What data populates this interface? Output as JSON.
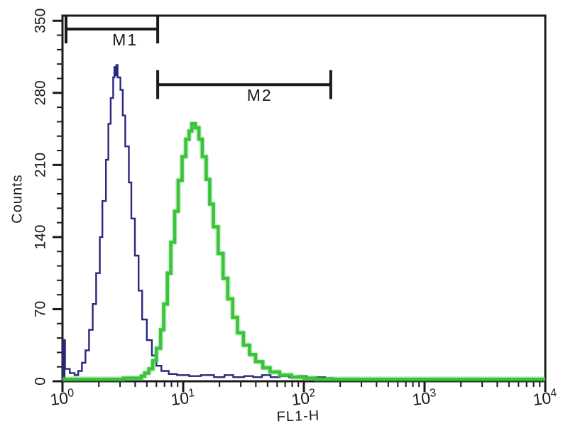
{
  "chart_data": {
    "type": "line",
    "variant": "flow-cytometry-overlay-histogram",
    "title": "",
    "xlabel": "FL1-H",
    "ylabel": "Counts",
    "x_scale": "log",
    "xlim": [
      1,
      10000
    ],
    "ylim": [
      0,
      355
    ],
    "x_tick_base": "10",
    "x_tick_exponents": [
      0,
      1,
      2,
      3,
      4
    ],
    "y_major_ticks": [
      0,
      70,
      140,
      210,
      280,
      350
    ],
    "y_minor_step": 14,
    "grid": false,
    "legend_position": "none",
    "background_color": "#ffffff",
    "axis_color": "#1a1a1a",
    "markers": [
      {
        "label": "M1",
        "x_from": 1.07,
        "x_to": 6.15,
        "y_counts": 342,
        "cap_half_counts": 14,
        "label_x": 3.3,
        "color": "#1a1a1a"
      },
      {
        "label": "M2",
        "x_from": 6.15,
        "x_to": 167,
        "y_counts": 288,
        "cap_half_counts": 14,
        "label_x": 43,
        "color": "#1a1a1a"
      }
    ],
    "origin_spike": {
      "x_from": 1.0,
      "x_to": 1.05,
      "counts": 40,
      "color": "#28287e"
    },
    "series": [
      {
        "name": "blue-outline-histogram",
        "color": "#28287e",
        "stroke_width": 2.4,
        "peak": {
          "x": 2.8,
          "counts": 307
        },
        "points": [
          [
            1.0,
            40
          ],
          [
            1.05,
            12
          ],
          [
            1.15,
            8
          ],
          [
            1.26,
            6
          ],
          [
            1.35,
            10
          ],
          [
            1.45,
            18
          ],
          [
            1.55,
            30
          ],
          [
            1.66,
            50
          ],
          [
            1.78,
            75
          ],
          [
            1.9,
            105
          ],
          [
            2.04,
            140
          ],
          [
            2.14,
            175
          ],
          [
            2.29,
            215
          ],
          [
            2.4,
            250
          ],
          [
            2.51,
            275
          ],
          [
            2.63,
            295
          ],
          [
            2.69,
            305
          ],
          [
            2.74,
            297
          ],
          [
            2.79,
            307
          ],
          [
            2.86,
            295
          ],
          [
            3.02,
            283
          ],
          [
            3.16,
            258
          ],
          [
            3.31,
            228
          ],
          [
            3.55,
            193
          ],
          [
            3.72,
            158
          ],
          [
            3.98,
            122
          ],
          [
            4.27,
            88
          ],
          [
            4.57,
            60
          ],
          [
            5.0,
            40
          ],
          [
            5.5,
            25
          ],
          [
            6.0,
            15
          ],
          [
            6.6,
            10
          ],
          [
            7.6,
            7
          ],
          [
            8.9,
            6
          ],
          [
            11.2,
            5
          ],
          [
            14,
            6
          ],
          [
            18,
            4
          ],
          [
            22,
            6
          ],
          [
            26,
            4
          ],
          [
            32,
            5
          ],
          [
            38,
            4
          ],
          [
            45,
            6
          ],
          [
            53,
            4
          ],
          [
            63,
            5
          ],
          [
            75,
            4
          ],
          [
            89,
            5
          ],
          [
            105,
            3
          ],
          [
            126,
            4
          ],
          [
            150,
            3
          ],
          [
            178,
            3
          ]
        ]
      },
      {
        "name": "green-thick-histogram",
        "color": "#3bc43b",
        "stroke_width": 4.6,
        "peak": {
          "x": 12,
          "counts": 250
        },
        "points": [
          [
            1.0,
            2
          ],
          [
            2.5,
            2
          ],
          [
            3.2,
            3
          ],
          [
            4.0,
            3
          ],
          [
            4.5,
            5
          ],
          [
            4.8,
            8
          ],
          [
            5.2,
            12
          ],
          [
            5.6,
            20
          ],
          [
            6.0,
            32
          ],
          [
            6.5,
            50
          ],
          [
            6.9,
            75
          ],
          [
            7.4,
            105
          ],
          [
            7.9,
            135
          ],
          [
            8.5,
            165
          ],
          [
            9.1,
            195
          ],
          [
            9.8,
            218
          ],
          [
            10.5,
            235
          ],
          [
            11.2,
            243
          ],
          [
            11.8,
            250
          ],
          [
            12.6,
            246
          ],
          [
            13.5,
            235
          ],
          [
            14.4,
            218
          ],
          [
            15.5,
            196
          ],
          [
            16.6,
            172
          ],
          [
            17.8,
            150
          ],
          [
            19.5,
            124
          ],
          [
            21.4,
            100
          ],
          [
            23.4,
            80
          ],
          [
            25.7,
            62
          ],
          [
            28.2,
            47
          ],
          [
            31.6,
            35
          ],
          [
            35.5,
            26
          ],
          [
            39.8,
            19
          ],
          [
            45.7,
            13
          ],
          [
            52.5,
            9
          ],
          [
            63,
            6
          ],
          [
            79,
            4
          ],
          [
            100,
            3
          ],
          [
            126,
            2
          ],
          [
            200,
            2
          ],
          [
            400,
            2
          ],
          [
            1000,
            2
          ],
          [
            3000,
            2
          ],
          [
            10000,
            2
          ]
        ]
      }
    ]
  }
}
